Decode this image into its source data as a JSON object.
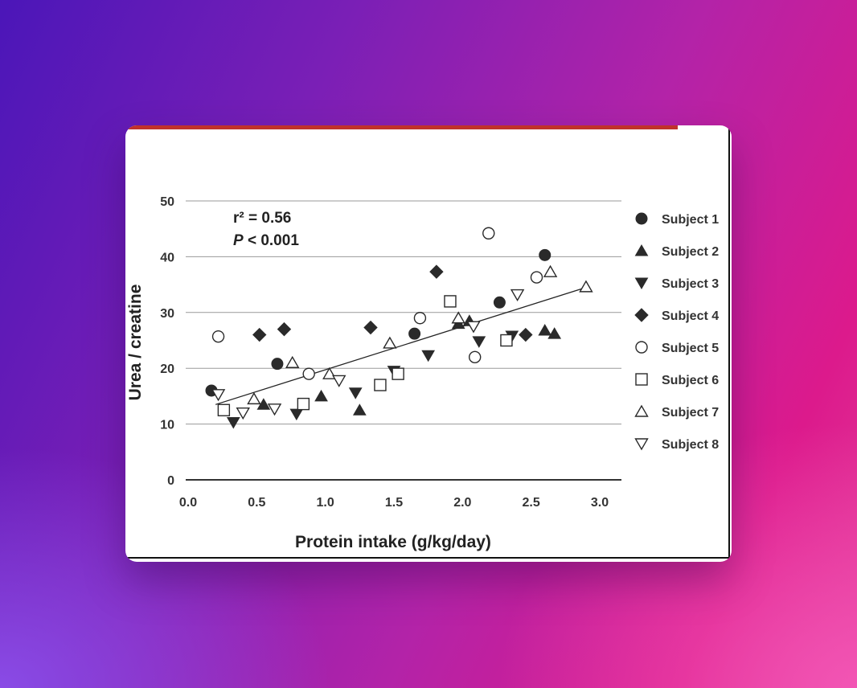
{
  "chart_data": {
    "type": "scatter",
    "xlabel": "Protein intake (g/kg/day)",
    "ylabel": "Urea / creatine",
    "xlim": [
      0,
      3.0
    ],
    "ylim": [
      0,
      50
    ],
    "xticks": [
      "0.0",
      "0.5",
      "1.0",
      "1.5",
      "2.0",
      "2.5",
      "3.0"
    ],
    "yticks": [
      "0",
      "10",
      "20",
      "30",
      "40",
      "50"
    ],
    "grid": "horizontal",
    "legend_position": "right",
    "annotation": {
      "r2": "r² = 0.56",
      "p_label": "P",
      "p_value": " < 0.001"
    },
    "regression_line": {
      "x": [
        0.2,
        2.9
      ],
      "y": [
        13.5,
        34.5
      ]
    },
    "series": [
      {
        "name": "Subject 1",
        "marker": "filled-circle",
        "points": [
          [
            0.17,
            16
          ],
          [
            0.65,
            20.8
          ],
          [
            1.65,
            26.2
          ],
          [
            2.27,
            31.8
          ],
          [
            2.6,
            40.3
          ]
        ]
      },
      {
        "name": "Subject 2",
        "marker": "filled-triangle-up",
        "points": [
          [
            0.55,
            13.5
          ],
          [
            0.97,
            15
          ],
          [
            1.25,
            12.5
          ],
          [
            1.97,
            28
          ],
          [
            2.05,
            28.5
          ],
          [
            2.6,
            26.8
          ],
          [
            2.67,
            26.2
          ]
        ]
      },
      {
        "name": "Subject 3",
        "marker": "filled-triangle-down",
        "points": [
          [
            0.33,
            10.3
          ],
          [
            0.79,
            11.8
          ],
          [
            1.22,
            15.6
          ],
          [
            1.5,
            19.5
          ],
          [
            1.75,
            22.3
          ],
          [
            2.12,
            24.8
          ],
          [
            2.36,
            25.8
          ]
        ]
      },
      {
        "name": "Subject 4",
        "marker": "filled-diamond",
        "points": [
          [
            0.52,
            26
          ],
          [
            0.7,
            27
          ],
          [
            1.33,
            27.3
          ],
          [
            1.81,
            37.3
          ],
          [
            2.46,
            26
          ]
        ]
      },
      {
        "name": "Subject 5",
        "marker": "open-circle",
        "points": [
          [
            0.22,
            25.7
          ],
          [
            0.88,
            19
          ],
          [
            1.69,
            29
          ],
          [
            2.09,
            22
          ],
          [
            2.19,
            44.2
          ],
          [
            2.54,
            36.3
          ]
        ]
      },
      {
        "name": "Subject 6",
        "marker": "open-square",
        "points": [
          [
            0.26,
            12.5
          ],
          [
            0.84,
            13.6
          ],
          [
            1.4,
            17
          ],
          [
            1.53,
            19
          ],
          [
            1.91,
            32
          ],
          [
            2.32,
            25
          ]
        ]
      },
      {
        "name": "Subject 7",
        "marker": "open-triangle-up",
        "points": [
          [
            0.48,
            14.5
          ],
          [
            0.76,
            21
          ],
          [
            1.03,
            19
          ],
          [
            1.47,
            24.5
          ],
          [
            1.97,
            29
          ],
          [
            2.64,
            37.3
          ],
          [
            2.9,
            34.6
          ]
        ]
      },
      {
        "name": "Subject 8",
        "marker": "open-triangle-down",
        "points": [
          [
            0.22,
            15.3
          ],
          [
            0.4,
            12
          ],
          [
            0.63,
            12.7
          ],
          [
            1.1,
            17.8
          ],
          [
            2.08,
            27.5
          ],
          [
            2.4,
            33.2
          ]
        ]
      }
    ]
  },
  "colors": {
    "accent_bar": "#c0322b",
    "marks": "#2a2a2a",
    "grid": "#9a9a9a"
  }
}
